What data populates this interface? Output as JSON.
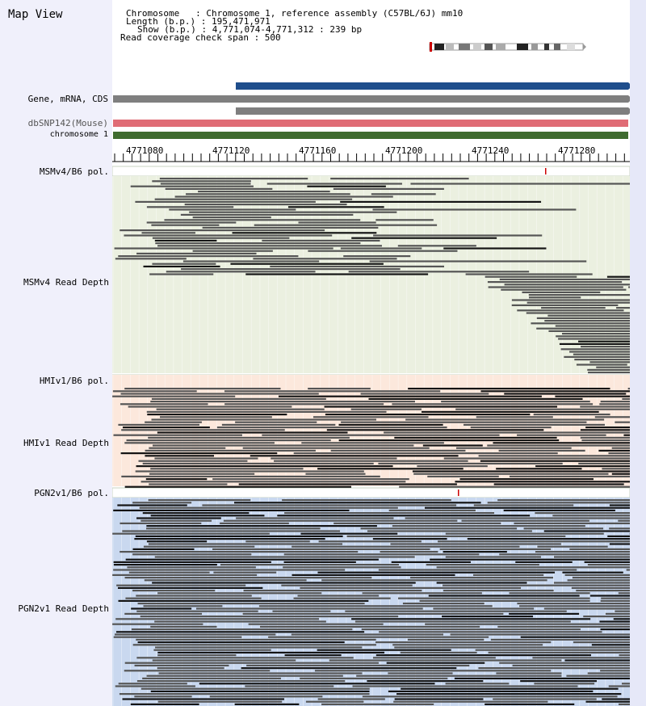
{
  "title": "Map View",
  "info": {
    "chromosome": "Chromosome   : Chromosome 1, reference assembly (C57BL/6J) mm10",
    "length": "Length (b.p.) : 195,471,971",
    "show": "Show (b.p.) : 4,771,074-4,771,312 : 239 bp",
    "coverage": "Read coverage check span : 500"
  },
  "tracks": {
    "gene": "Gene, mRNA, CDS",
    "dbsnp": "dbSNP142(Mouse)",
    "chromosome": "chromosome 1"
  },
  "ruler": {
    "ticks": [
      "4771080",
      "4771120",
      "4771160",
      "4771200",
      "4771240",
      "4771280"
    ]
  },
  "sections": [
    {
      "pol_label": "MSMv4/B6 pol.",
      "depth_label": "MSMv4 Read Depth"
    },
    {
      "pol_label": "HMIv1/B6 pol.",
      "depth_label": "HMIv1 Read Depth"
    },
    {
      "pol_label": "PGN2v1/B6 pol.",
      "depth_label": "PGN2v1 Read Depth"
    }
  ],
  "colors": {
    "gene_blue": "#1f4e8c",
    "gene_grey": "#7f7f7f",
    "dbsnp": "#e06c75",
    "chromosome": "#3f6b2f",
    "msm_bg": "#ebf0e0",
    "hmi_bg": "#fce8dc",
    "pgn_bg": "#c9d8ef",
    "read": "#555555",
    "read_dark": "#141414",
    "snp_mark": "#cc0000"
  }
}
